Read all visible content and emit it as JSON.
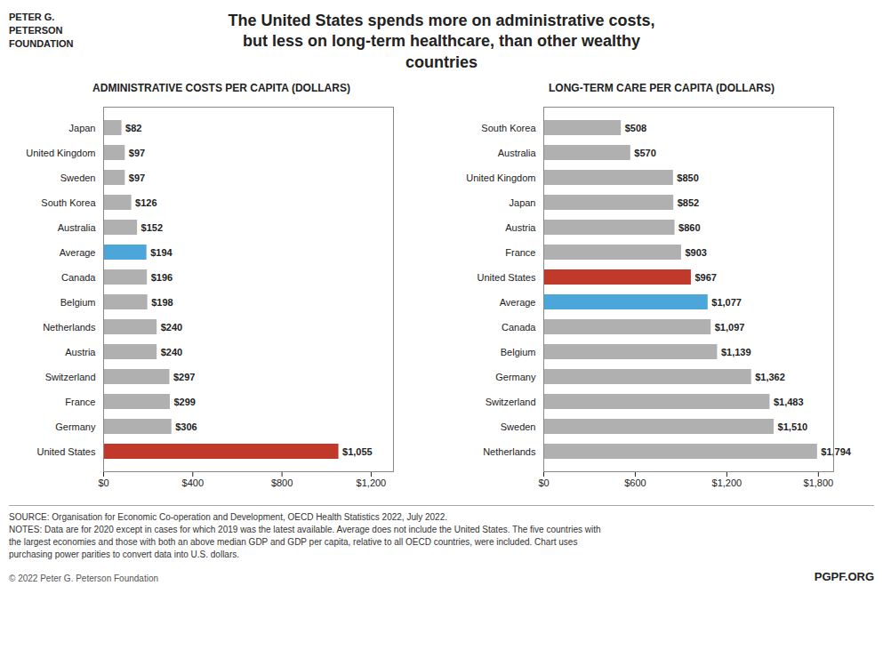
{
  "title": "The United States spends more on administrative costs,\nbut less on long-term healthcare, than other wealthy\ncountries",
  "annotations": [
    "PETER G.",
    "PETERSON",
    "FOUNDATION",
    "SOURCE: Organisation for Economic Co-operation and Development, OECD Health Statistics 2022, July 2022.\nNOTES: Data are for 2020 except in cases for which 2019 was the latest available. Average does not include the United States. The five countries with\nthe largest economies and those with both an above median GDP and GDP per capita, relative to all OECD countries, were included. Chart uses\npurchasing power parities to convert data into U.S. dollars.",
    "© 2022 Peter G. Peterson Foundation",
    "PGPF.ORG"
  ],
  "chart_data": [
    {
      "type": "bar",
      "orientation": "horizontal",
      "title": "ADMINISTRATIVE COSTS PER CAPITA (DOLLARS)",
      "categories": [
        "Japan",
        "United Kingdom",
        "Sweden",
        "South Korea",
        "Australia",
        "Average",
        "Canada",
        "Belgium",
        "Netherlands",
        "Austria",
        "Switzerland",
        "France",
        "Germany",
        "United States"
      ],
      "values": [
        82,
        97,
        97,
        126,
        152,
        194,
        196,
        198,
        240,
        240,
        297,
        299,
        306,
        1055
      ],
      "value_labels": [
        "$82",
        "$97",
        "$97",
        "$126",
        "$152",
        "$194",
        "$196",
        "$198",
        "$240",
        "$240",
        "$297",
        "$299",
        "$306",
        "$1,055"
      ],
      "colors": [
        "#b0b0b0",
        "#b0b0b0",
        "#b0b0b0",
        "#b0b0b0",
        "#b0b0b0",
        "#4da6d9",
        "#b0b0b0",
        "#b0b0b0",
        "#b0b0b0",
        "#b0b0b0",
        "#b0b0b0",
        "#b0b0b0",
        "#b0b0b0",
        "#c0392b"
      ],
      "xlim": [
        0,
        1300
      ],
      "xticks": [
        {
          "value": 0,
          "label": "$0"
        },
        {
          "value": 400,
          "label": "$400"
        },
        {
          "value": 800,
          "label": "$800"
        },
        {
          "value": 1200,
          "label": "$1,200"
        }
      ],
      "data_labels": true,
      "grid": false
    },
    {
      "type": "bar",
      "orientation": "horizontal",
      "title": "LONG-TERM CARE PER CAPITA (DOLLARS)",
      "categories": [
        "South Korea",
        "Australia",
        "United Kingdom",
        "Japan",
        "Austria",
        "France",
        "United States",
        "Average",
        "Canada",
        "Belgium",
        "Germany",
        "Switzerland",
        "Sweden",
        "Netherlands"
      ],
      "values": [
        508,
        570,
        850,
        852,
        860,
        903,
        967,
        1077,
        1097,
        1139,
        1362,
        1483,
        1510,
        1794
      ],
      "value_labels": [
        "$508",
        "$570",
        "$850",
        "$852",
        "$860",
        "$903",
        "$967",
        "$1,077",
        "$1,097",
        "$1,139",
        "$1,362",
        "$1,483",
        "$1,510",
        "$1,794"
      ],
      "colors": [
        "#b0b0b0",
        "#b0b0b0",
        "#b0b0b0",
        "#b0b0b0",
        "#b0b0b0",
        "#b0b0b0",
        "#c0392b",
        "#4da6d9",
        "#b0b0b0",
        "#b0b0b0",
        "#b0b0b0",
        "#b0b0b0",
        "#b0b0b0",
        "#b0b0b0"
      ],
      "xlim": [
        0,
        1900
      ],
      "xticks": [
        {
          "value": 0,
          "label": "$0"
        },
        {
          "value": 600,
          "label": "$600"
        },
        {
          "value": 1200,
          "label": "$1,200"
        },
        {
          "value": 1800,
          "label": "$1,800"
        }
      ],
      "data_labels": true,
      "grid": false
    }
  ]
}
